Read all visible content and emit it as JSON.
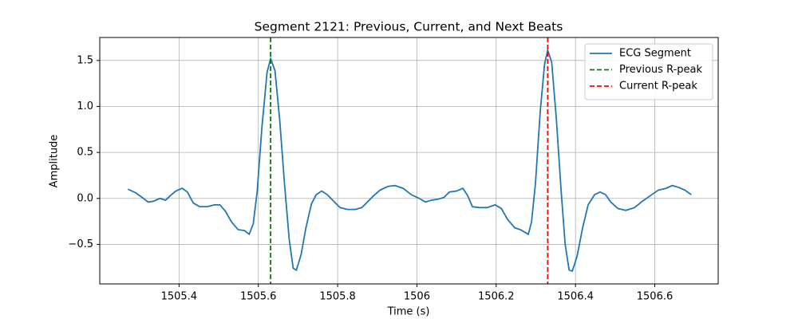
{
  "chart_data": {
    "type": "line",
    "title": "Segment 2121: Previous, Current, and Next Beats",
    "x_label": "Time (s)",
    "y_label": "Amplitude",
    "x": [
      1505.271,
      1505.291,
      1505.307,
      1505.322,
      1505.336,
      1505.352,
      1505.366,
      1505.378,
      1505.392,
      1505.408,
      1505.421,
      1505.436,
      1505.452,
      1505.472,
      1505.489,
      1505.503,
      1505.517,
      1505.533,
      1505.549,
      1505.565,
      1505.577,
      1505.587,
      1505.597,
      1505.609,
      1505.622,
      1505.631,
      1505.642,
      1505.654,
      1505.666,
      1505.678,
      1505.688,
      1505.696,
      1505.708,
      1505.72,
      1505.734,
      1505.746,
      1505.76,
      1505.774,
      1505.79,
      1505.806,
      1505.825,
      1505.845,
      1505.861,
      1505.875,
      1505.891,
      1505.907,
      1505.927,
      1505.945,
      1505.965,
      1505.986,
      1506.006,
      1506.022,
      1506.036,
      1506.052,
      1506.068,
      1506.082,
      1506.1,
      1506.116,
      1506.128,
      1506.14,
      1506.157,
      1506.177,
      1506.197,
      1506.213,
      1506.229,
      1506.247,
      1506.261,
      1506.273,
      1506.281,
      1506.289,
      1506.299,
      1506.311,
      1506.322,
      1506.33,
      1506.34,
      1506.352,
      1506.364,
      1506.374,
      1506.384,
      1506.392,
      1506.404,
      1506.418,
      1506.432,
      1506.448,
      1506.462,
      1506.476,
      1506.489,
      1506.507,
      1506.527,
      1506.549,
      1506.569,
      1506.589,
      1506.609,
      1506.629,
      1506.644,
      1506.66,
      1506.676,
      1506.692
    ],
    "series": [
      {
        "name": "ECG Segment",
        "color": "#1f77b4",
        "values": [
          0.1,
          0.06,
          0.01,
          -0.04,
          -0.03,
          0.0,
          -0.02,
          0.03,
          0.08,
          0.11,
          0.07,
          -0.05,
          -0.09,
          -0.09,
          -0.07,
          -0.07,
          -0.14,
          -0.26,
          -0.34,
          -0.35,
          -0.39,
          -0.28,
          0.07,
          0.77,
          1.37,
          1.52,
          1.39,
          0.85,
          0.16,
          -0.45,
          -0.76,
          -0.78,
          -0.61,
          -0.32,
          -0.06,
          0.04,
          0.08,
          0.04,
          -0.03,
          -0.1,
          -0.12,
          -0.12,
          -0.1,
          -0.04,
          0.03,
          0.09,
          0.13,
          0.14,
          0.11,
          0.04,
          0.0,
          -0.04,
          -0.02,
          -0.01,
          0.01,
          0.07,
          0.08,
          0.11,
          0.03,
          -0.09,
          -0.1,
          -0.1,
          -0.07,
          -0.11,
          -0.23,
          -0.32,
          -0.34,
          -0.37,
          -0.39,
          -0.26,
          0.16,
          0.94,
          1.46,
          1.61,
          1.48,
          0.85,
          0.07,
          -0.5,
          -0.78,
          -0.79,
          -0.63,
          -0.32,
          -0.07,
          0.04,
          0.07,
          0.04,
          -0.04,
          -0.11,
          -0.13,
          -0.1,
          -0.03,
          0.03,
          0.09,
          0.11,
          0.14,
          0.12,
          0.09,
          0.04
        ]
      }
    ],
    "vlines": [
      {
        "name": "Previous R-peak",
        "x": 1505.631,
        "color": "green"
      },
      {
        "name": "Current R-peak",
        "x": 1506.33,
        "color": "red"
      }
    ],
    "xlim": [
      1505.2,
      1506.76
    ],
    "ylim": [
      -0.93,
      1.75
    ],
    "xticks": [
      1505.4,
      1505.6,
      1505.8,
      1506.0,
      1506.2,
      1506.4,
      1506.6
    ],
    "yticks": [
      {
        "value": -0.5,
        "label": "−0.5"
      },
      {
        "value": 0,
        "label": "0.0"
      },
      0.5,
      {
        "value": 1,
        "label": "1.0"
      },
      1.5
    ],
    "grid": true,
    "legend": "upper right"
  }
}
